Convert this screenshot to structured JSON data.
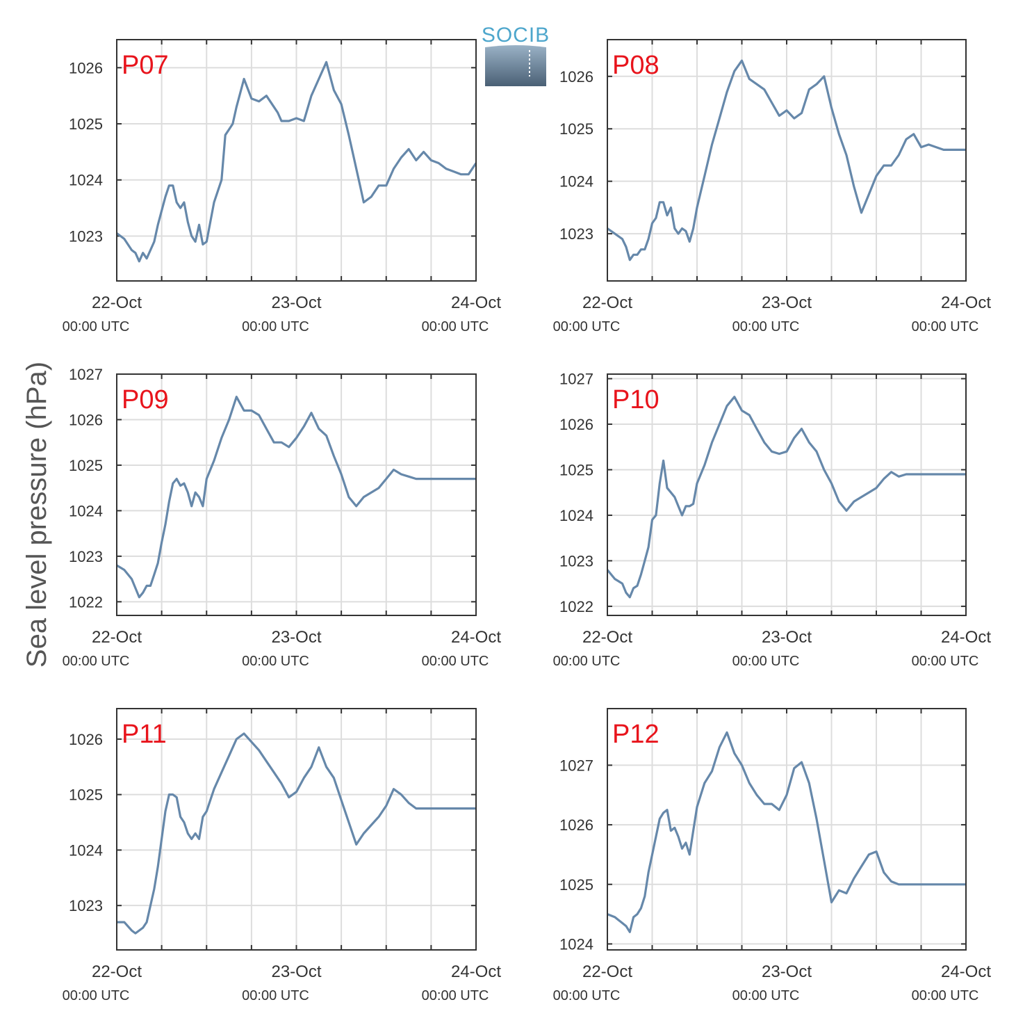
{
  "figure": {
    "ylabel": "Sea level pressure (hPa)",
    "logo_text": "SOCIB",
    "colors": {
      "line": "#6688aa",
      "grid": "#dddddd",
      "axis": "#333333",
      "panel_label": "#e8141c",
      "logo_text": "#4da6cc",
      "logo_top": "#9ab2c6",
      "logo_bottom": "#4a6075"
    }
  },
  "chart_data": [
    {
      "type": "line",
      "title": "P07",
      "x_ticks": [
        {
          "date": "22-Oct",
          "time": "00:00 UTC"
        },
        {
          "date": "23-Oct",
          "time": "00:00 UTC"
        },
        {
          "date": "24-Oct",
          "time": "00:00 UTC"
        }
      ],
      "xlim": [
        0,
        48
      ],
      "ylim": [
        1022.2,
        1026.5
      ],
      "yticks": [
        1023,
        1024,
        1025,
        1026
      ],
      "grid": true,
      "series": [
        {
          "x": [
            0,
            1,
            2,
            2.5,
            3,
            3.5,
            4,
            4.5,
            5,
            5.5,
            6,
            6.5,
            7,
            7.5,
            8,
            8.5,
            9,
            9.5,
            10,
            10.5,
            11,
            11.5,
            12,
            13,
            14,
            14.5,
            15,
            15.5,
            16,
            16.5,
            17,
            18,
            19,
            20,
            21,
            21.5,
            22,
            23,
            24,
            25,
            26,
            27,
            28,
            29,
            30,
            31,
            31.5,
            32,
            32.5,
            33,
            34,
            35,
            36,
            37,
            38,
            39,
            40,
            41,
            42,
            43,
            44,
            45,
            46,
            47,
            48
          ],
          "y": [
            1023.05,
            1022.95,
            1022.75,
            1022.7,
            1022.55,
            1022.7,
            1022.6,
            1022.75,
            1022.9,
            1023.2,
            1023.45,
            1023.7,
            1023.9,
            1023.9,
            1023.6,
            1023.5,
            1023.6,
            1023.25,
            1023.0,
            1022.9,
            1023.2,
            1022.85,
            1022.9,
            1023.6,
            1024.0,
            1024.8,
            1024.9,
            1025.0,
            1025.3,
            1025.55,
            1025.8,
            1025.45,
            1025.4,
            1025.5,
            1025.3,
            1025.2,
            1025.05,
            1025.05,
            1025.1,
            1025.05,
            1025.5,
            1025.8,
            1026.1,
            1025.6,
            1025.35,
            1024.8,
            1024.5,
            1024.2,
            1023.9,
            1023.6,
            1023.7,
            1023.9,
            1023.9,
            1024.2,
            1024.4,
            1024.55,
            1024.35,
            1024.5,
            1024.35,
            1024.3,
            1024.2,
            1024.15,
            1024.1,
            1024.1,
            1024.3
          ]
        }
      ]
    },
    {
      "type": "line",
      "title": "P08",
      "x_ticks": [
        {
          "date": "22-Oct",
          "time": "00:00 UTC"
        },
        {
          "date": "23-Oct",
          "time": "00:00 UTC"
        },
        {
          "date": "24-Oct",
          "time": "00:00 UTC"
        }
      ],
      "xlim": [
        0,
        48
      ],
      "ylim": [
        1022.1,
        1026.7
      ],
      "yticks": [
        1023,
        1024,
        1025,
        1026
      ],
      "grid": true,
      "series": [
        {
          "x": [
            0,
            1,
            2,
            2.5,
            3,
            3.5,
            4,
            4.5,
            5,
            5.5,
            6,
            6.5,
            7,
            7.5,
            8,
            8.5,
            9,
            9.5,
            10,
            10.5,
            11,
            11.5,
            12,
            13,
            14,
            15,
            16,
            17,
            18,
            19,
            20,
            21,
            22,
            23,
            24,
            25,
            26,
            27,
            28,
            29,
            30,
            31,
            32,
            33,
            34,
            35,
            36,
            37,
            38,
            39,
            40,
            41,
            42,
            43,
            44,
            45,
            46,
            47,
            48
          ],
          "y": [
            1023.1,
            1023.0,
            1022.9,
            1022.75,
            1022.5,
            1022.6,
            1022.6,
            1022.7,
            1022.7,
            1022.9,
            1023.2,
            1023.3,
            1023.6,
            1023.6,
            1023.35,
            1023.5,
            1023.1,
            1023.0,
            1023.1,
            1023.05,
            1022.85,
            1023.1,
            1023.5,
            1024.1,
            1024.7,
            1025.2,
            1025.7,
            1026.1,
            1026.3,
            1025.95,
            1025.85,
            1025.75,
            1025.5,
            1025.25,
            1025.35,
            1025.2,
            1025.3,
            1025.75,
            1025.85,
            1026.0,
            1025.4,
            1024.9,
            1024.5,
            1023.9,
            1023.4,
            1023.75,
            1024.1,
            1024.3,
            1024.3,
            1024.5,
            1024.8,
            1024.9,
            1024.65,
            1024.7,
            1024.65,
            1024.6,
            1024.6,
            1024.6,
            1024.6
          ]
        }
      ]
    },
    {
      "type": "line",
      "title": "P09",
      "x_ticks": [
        {
          "date": "22-Oct",
          "time": "00:00 UTC"
        },
        {
          "date": "23-Oct",
          "time": "00:00 UTC"
        },
        {
          "date": "24-Oct",
          "time": "00:00 UTC"
        }
      ],
      "xlim": [
        0,
        48
      ],
      "ylim": [
        1021.7,
        1027.0
      ],
      "yticks": [
        1022,
        1023,
        1024,
        1025,
        1026,
        1027
      ],
      "grid": true,
      "series": [
        {
          "x": [
            0,
            1,
            2,
            2.5,
            3,
            3.5,
            4,
            4.5,
            5,
            5.5,
            6,
            6.5,
            7,
            7.5,
            8,
            8.5,
            9,
            9.5,
            10,
            10.5,
            11,
            11.5,
            12,
            13,
            14,
            15,
            16,
            17,
            18,
            19,
            20,
            21,
            22,
            23,
            24,
            25,
            26,
            27,
            28,
            29,
            30,
            31,
            32,
            33,
            34,
            35,
            36,
            37,
            38,
            39,
            40,
            41,
            42,
            43,
            44,
            45,
            46,
            47,
            48
          ],
          "y": [
            1022.8,
            1022.7,
            1022.5,
            1022.3,
            1022.1,
            1022.2,
            1022.35,
            1022.35,
            1022.6,
            1022.85,
            1023.3,
            1023.7,
            1024.2,
            1024.6,
            1024.7,
            1024.55,
            1024.6,
            1024.4,
            1024.1,
            1024.4,
            1024.3,
            1024.1,
            1024.7,
            1025.1,
            1025.6,
            1026.0,
            1026.5,
            1026.2,
            1026.2,
            1026.1,
            1025.8,
            1025.5,
            1025.5,
            1025.4,
            1025.6,
            1025.85,
            1026.15,
            1025.8,
            1025.65,
            1025.2,
            1024.8,
            1024.3,
            1024.1,
            1024.3,
            1024.4,
            1024.5,
            1024.7,
            1024.9,
            1024.8,
            1024.75,
            1024.7,
            1024.7,
            1024.7,
            1024.7,
            1024.7,
            1024.7,
            1024.7,
            1024.7,
            1024.7
          ]
        }
      ]
    },
    {
      "type": "line",
      "title": "P10",
      "x_ticks": [
        {
          "date": "22-Oct",
          "time": "00:00 UTC"
        },
        {
          "date": "23-Oct",
          "time": "00:00 UTC"
        },
        {
          "date": "24-Oct",
          "time": "00:00 UTC"
        }
      ],
      "xlim": [
        0,
        48
      ],
      "ylim": [
        1021.8,
        1027.1
      ],
      "yticks": [
        1022,
        1023,
        1024,
        1025,
        1026,
        1027
      ],
      "grid": true,
      "series": [
        {
          "x": [
            0,
            1,
            2,
            2.5,
            3,
            3.5,
            4,
            4.5,
            5,
            5.5,
            6,
            6.5,
            7,
            7.5,
            8,
            8.5,
            9,
            9.5,
            10,
            10.5,
            11,
            11.5,
            12,
            13,
            14,
            15,
            16,
            17,
            18,
            19,
            20,
            21,
            22,
            23,
            24,
            25,
            26,
            27,
            28,
            29,
            30,
            31,
            32,
            33,
            34,
            35,
            36,
            37,
            38,
            39,
            40,
            41,
            42,
            43,
            44,
            45,
            46,
            47,
            48
          ],
          "y": [
            1022.8,
            1022.6,
            1022.5,
            1022.3,
            1022.2,
            1022.4,
            1022.45,
            1022.7,
            1023.0,
            1023.3,
            1023.9,
            1024.0,
            1024.7,
            1025.2,
            1024.6,
            1024.5,
            1024.4,
            1024.2,
            1024.0,
            1024.2,
            1024.2,
            1024.25,
            1024.7,
            1025.1,
            1025.6,
            1026.0,
            1026.4,
            1026.6,
            1026.3,
            1026.2,
            1025.9,
            1025.6,
            1025.4,
            1025.35,
            1025.4,
            1025.7,
            1025.9,
            1025.6,
            1025.4,
            1025.0,
            1024.7,
            1024.3,
            1024.1,
            1024.3,
            1024.4,
            1024.5,
            1024.6,
            1024.8,
            1024.95,
            1024.85,
            1024.9,
            1024.9,
            1024.9,
            1024.9,
            1024.9,
            1024.9,
            1024.9,
            1024.9,
            1024.9
          ]
        }
      ]
    },
    {
      "type": "line",
      "title": "P11",
      "x_ticks": [
        {
          "date": "22-Oct",
          "time": "00:00 UTC"
        },
        {
          "date": "23-Oct",
          "time": "00:00 UTC"
        },
        {
          "date": "24-Oct",
          "time": "00:00 UTC"
        }
      ],
      "xlim": [
        0,
        48
      ],
      "ylim": [
        1022.2,
        1026.55
      ],
      "yticks": [
        1023,
        1024,
        1025,
        1026
      ],
      "grid": true,
      "series": [
        {
          "x": [
            0,
            1,
            2,
            2.5,
            3,
            3.5,
            4,
            4.5,
            5,
            5.5,
            6,
            6.5,
            7,
            7.5,
            8,
            8.5,
            9,
            9.5,
            10,
            10.5,
            11,
            11.5,
            12,
            13,
            14,
            15,
            16,
            17,
            18,
            19,
            20,
            21,
            22,
            23,
            24,
            25,
            26,
            27,
            28,
            29,
            30,
            31,
            32,
            33,
            34,
            35,
            36,
            37,
            38,
            39,
            40,
            41,
            42,
            43,
            44,
            45,
            46,
            47,
            48
          ],
          "y": [
            1022.7,
            1022.7,
            1022.55,
            1022.5,
            1022.55,
            1022.6,
            1022.7,
            1023.0,
            1023.3,
            1023.7,
            1024.2,
            1024.7,
            1025.0,
            1025.0,
            1024.95,
            1024.6,
            1024.5,
            1024.3,
            1024.2,
            1024.3,
            1024.2,
            1024.6,
            1024.7,
            1025.1,
            1025.4,
            1025.7,
            1026.0,
            1026.1,
            1025.95,
            1025.8,
            1025.6,
            1025.4,
            1025.2,
            1024.95,
            1025.05,
            1025.3,
            1025.5,
            1025.85,
            1025.5,
            1025.3,
            1024.9,
            1024.5,
            1024.1,
            1024.3,
            1024.45,
            1024.6,
            1024.8,
            1025.1,
            1025.0,
            1024.85,
            1024.75,
            1024.75,
            1024.75,
            1024.75,
            1024.75,
            1024.75,
            1024.75,
            1024.75,
            1024.75
          ]
        }
      ]
    },
    {
      "type": "line",
      "title": "P12",
      "x_ticks": [
        {
          "date": "22-Oct",
          "time": "00:00 UTC"
        },
        {
          "date": "23-Oct",
          "time": "00:00 UTC"
        },
        {
          "date": "24-Oct",
          "time": "00:00 UTC"
        }
      ],
      "xlim": [
        0,
        48
      ],
      "ylim": [
        1023.9,
        1027.95
      ],
      "yticks": [
        1024,
        1025,
        1026,
        1027
      ],
      "grid": true,
      "series": [
        {
          "x": [
            0,
            1,
            2,
            2.5,
            3,
            3.5,
            4,
            4.5,
            5,
            5.5,
            6,
            6.5,
            7,
            7.5,
            8,
            8.5,
            9,
            9.5,
            10,
            10.5,
            11,
            11.5,
            12,
            13,
            14,
            15,
            16,
            17,
            18,
            19,
            20,
            21,
            22,
            23,
            24,
            25,
            26,
            27,
            28,
            29,
            30,
            31,
            32,
            33,
            34,
            35,
            36,
            37,
            38,
            39,
            40,
            41,
            42,
            43,
            44,
            45,
            46,
            47,
            48
          ],
          "y": [
            1024.5,
            1024.45,
            1024.35,
            1024.3,
            1024.2,
            1024.45,
            1024.5,
            1024.6,
            1024.8,
            1025.2,
            1025.5,
            1025.8,
            1026.1,
            1026.2,
            1026.25,
            1025.9,
            1025.95,
            1025.8,
            1025.6,
            1025.7,
            1025.5,
            1025.9,
            1026.3,
            1026.7,
            1026.9,
            1027.3,
            1027.55,
            1027.2,
            1027.0,
            1026.7,
            1026.5,
            1026.35,
            1026.35,
            1026.25,
            1026.5,
            1026.95,
            1027.05,
            1026.7,
            1026.1,
            1025.4,
            1024.7,
            1024.9,
            1024.85,
            1025.1,
            1025.3,
            1025.5,
            1025.55,
            1025.2,
            1025.05,
            1025.0,
            1025.0,
            1025.0,
            1025.0,
            1025.0,
            1025.0,
            1025.0,
            1025.0,
            1025.0,
            1025.0
          ]
        }
      ]
    }
  ]
}
